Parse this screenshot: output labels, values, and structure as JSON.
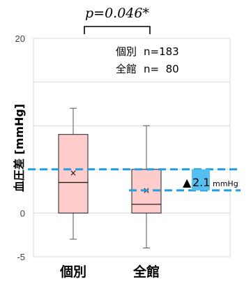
{
  "chart_data": {
    "type": "box",
    "ylabel": "血圧差 [mmHg]",
    "ylim": [
      -5,
      20
    ],
    "yticks": [
      -5,
      0,
      20
    ],
    "grid": "horizontal",
    "categories": [
      "個別",
      "全館"
    ],
    "series": [
      {
        "name": "個別",
        "n_label": "n=183",
        "whisker_low": -3,
        "q1": 0,
        "median": 3.5,
        "q3": 9,
        "whisker_high": 12,
        "mean": 4.6
      },
      {
        "name": "全館",
        "n_label": "n=  80",
        "whisker_low": -4,
        "q1": 0,
        "median": 1,
        "q3": 5,
        "whisker_high": 10,
        "mean": 2.6
      }
    ],
    "annotations": {
      "significance": "p=0.046*",
      "difference_value": "2.1",
      "difference_unit": "mmHg",
      "difference_marker": "▲",
      "ref_line_high": 5,
      "ref_line_low": 2.6
    },
    "colors": {
      "box_fill": "#ffcccc",
      "box_stroke": "#202020",
      "ref_line": "#1f9fe0",
      "highlight": "#55bff0",
      "grid": "#d9d9d9"
    }
  }
}
